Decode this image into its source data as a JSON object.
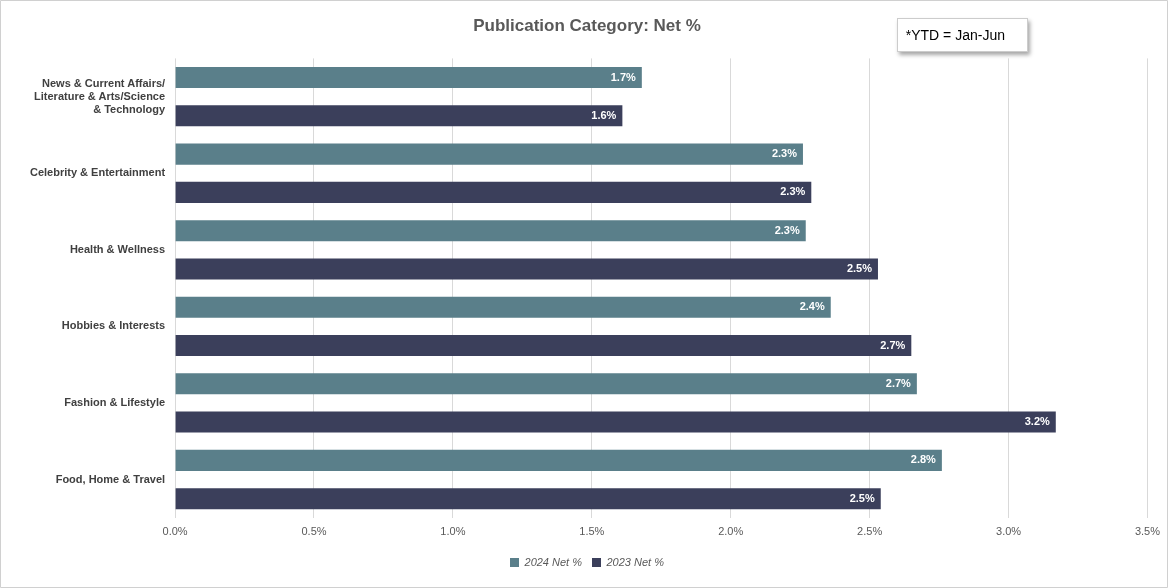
{
  "chart_data": {
    "type": "bar",
    "orientation": "horizontal",
    "title": "Publication Category: Net %",
    "categories": [
      "News & Current Affairs/ Literature & Arts/Science & Technology",
      "Celebrity & Entertainment",
      "Health & Wellness",
      "Hobbies & Interests",
      "Fashion & Lifestyle",
      "Food, Home & Travel"
    ],
    "series": [
      {
        "name": "2024 Net %",
        "color": "#5a7f8a",
        "values": [
          1.68,
          2.26,
          2.27,
          2.36,
          2.67,
          2.76
        ],
        "value_labels": [
          "1.7%",
          "2.3%",
          "2.3%",
          "2.4%",
          "2.7%",
          "2.8%"
        ]
      },
      {
        "name": "2023 Net %",
        "color": "#3b3f5b",
        "values": [
          1.61,
          2.29,
          2.53,
          2.65,
          3.17,
          2.54
        ],
        "value_labels": [
          "1.6%",
          "2.3%",
          "2.5%",
          "2.7%",
          "3.2%",
          "2.5%"
        ]
      }
    ],
    "xlim": [
      0,
      3.5
    ],
    "xticks": [
      {
        "value": 0,
        "label": "0.0%"
      },
      {
        "value": 0.5,
        "label": "0.5%"
      },
      {
        "value": 1,
        "label": "1.0%"
      },
      {
        "value": 1.5,
        "label": "1.5%"
      },
      {
        "value": 2,
        "label": "2.0%"
      },
      {
        "value": 2.5,
        "label": "2.5%"
      },
      {
        "value": 3,
        "label": "3.0%"
      },
      {
        "value": 3.5,
        "label": "3.5%"
      }
    ],
    "grid": "x",
    "legend": "bottom",
    "annotations": [
      "*YTD = Jan-Jun"
    ]
  }
}
